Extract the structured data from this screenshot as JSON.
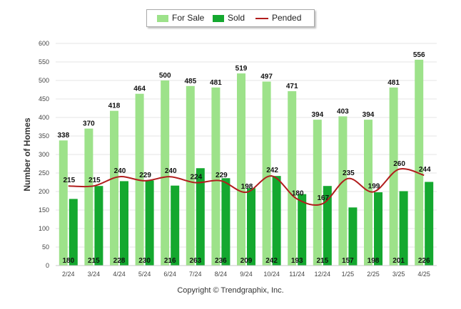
{
  "chart_data": {
    "type": "bar",
    "ylabel": "Number of Homes",
    "ylim": [
      0,
      600
    ],
    "yticks": [
      0,
      50,
      100,
      150,
      200,
      250,
      300,
      350,
      400,
      450,
      500,
      550,
      600
    ],
    "legend_position": "top-center",
    "grid": true,
    "categories": [
      "2/24",
      "3/24",
      "4/24",
      "5/24",
      "6/24",
      "7/24",
      "8/24",
      "9/24",
      "10/24",
      "11/24",
      "12/24",
      "1/25",
      "2/25",
      "3/25",
      "4/25"
    ],
    "series": [
      {
        "name": "For Sale",
        "type": "bar",
        "color": "#9de28a",
        "values": [
          338,
          370,
          418,
          464,
          500,
          485,
          481,
          519,
          497,
          471,
          394,
          403,
          394,
          481,
          556
        ]
      },
      {
        "name": "Sold",
        "type": "bar",
        "color": "#14a82f",
        "values": [
          180,
          215,
          228,
          230,
          216,
          263,
          236,
          209,
          242,
          193,
          215,
          157,
          198,
          201,
          226
        ]
      },
      {
        "name": "Pended",
        "type": "line",
        "color": "#b11d1d",
        "values": [
          215,
          215,
          240,
          229,
          240,
          224,
          229,
          198,
          242,
          180,
          167,
          235,
          199,
          260,
          244
        ]
      }
    ]
  },
  "copyright": "Copyright © Trendgraphix, Inc."
}
